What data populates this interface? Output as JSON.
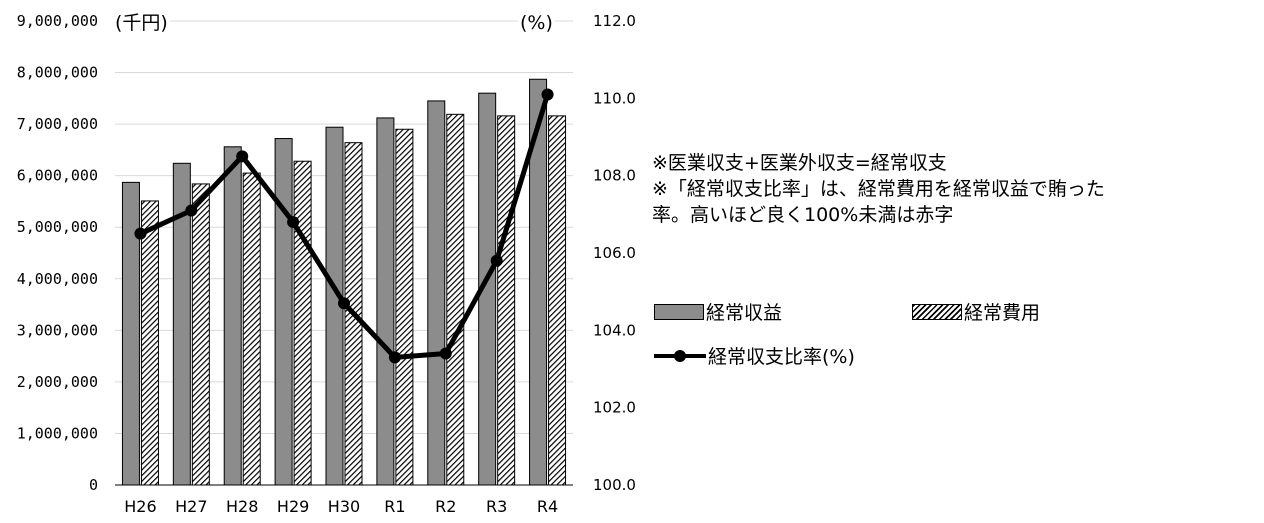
{
  "chart_data": {
    "type": "bar",
    "categories": [
      "H26",
      "H27",
      "H28",
      "H29",
      "H30",
      "R1",
      "R2",
      "R3",
      "R4"
    ],
    "series": [
      {
        "name": "経常収益",
        "type": "bar",
        "axis": "left",
        "pattern": "solid",
        "color": "#8c8c8c",
        "values": [
          5870000,
          6240000,
          6560000,
          6720000,
          6940000,
          7120000,
          7450000,
          7600000,
          7870000
        ]
      },
      {
        "name": "経常費用",
        "type": "bar",
        "axis": "left",
        "pattern": "hatched",
        "color": "#000000",
        "values": [
          5510000,
          5840000,
          6050000,
          6280000,
          6640000,
          6900000,
          7190000,
          7160000,
          7160000
        ]
      },
      {
        "name": "経常収支比率(%)",
        "type": "line",
        "axis": "right",
        "color": "#000000",
        "values": [
          106.5,
          107.1,
          108.5,
          106.8,
          104.7,
          103.3,
          103.4,
          105.8,
          110.1
        ]
      }
    ],
    "y_left": {
      "unit_label": "(千円)",
      "min": 0,
      "max": 9000000,
      "ticks": [
        0,
        1000000,
        2000000,
        3000000,
        4000000,
        5000000,
        6000000,
        7000000,
        8000000,
        9000000
      ],
      "tick_labels": [
        "0",
        "1,000,000",
        "2,000,000",
        "3,000,000",
        "4,000,000",
        "5,000,000",
        "6,000,000",
        "7,000,000",
        "8,000,000",
        "9,000,000"
      ]
    },
    "y_right": {
      "unit_label": "(%)",
      "min": 100,
      "max": 112,
      "ticks": [
        100,
        102,
        104,
        106,
        108,
        110,
        112
      ],
      "tick_labels": [
        "100.0",
        "102.0",
        "104.0",
        "106.0",
        "108.0",
        "110.0",
        "112.0"
      ]
    },
    "grid": true,
    "legend_position": "right"
  },
  "notes": {
    "line1": "※医業収支+医業外収支=経常収支",
    "line2": "※「経常収支比率」は、経常費用を経常収益で賄った",
    "line3": "率。高いほど良く100%未満は赤字"
  },
  "legend": {
    "revenue": "経常収益",
    "expense": "経常費用",
    "ratio": "経常収支比率(%)"
  }
}
